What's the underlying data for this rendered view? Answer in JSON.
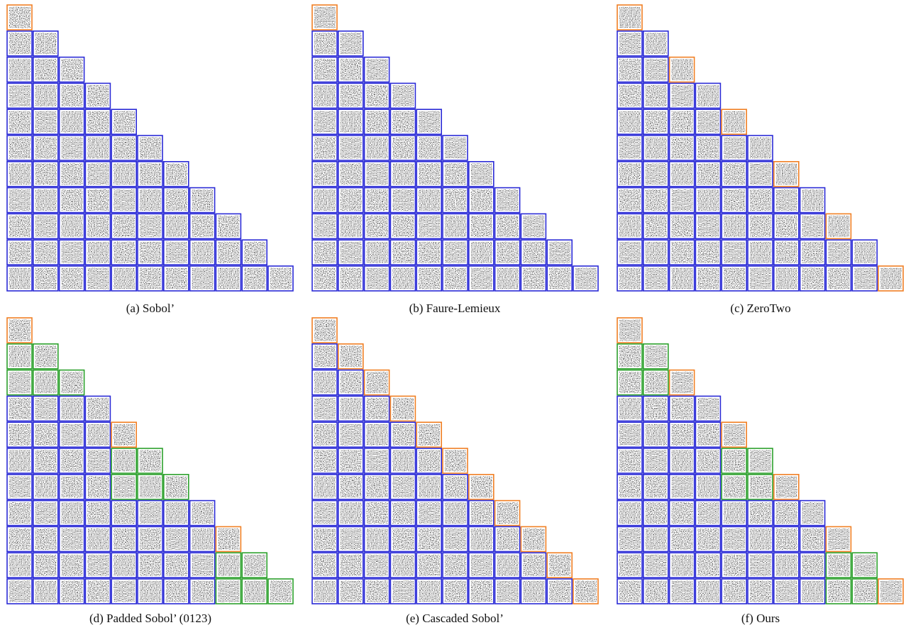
{
  "colors": {
    "blue": "#2b2bd6",
    "orange": "#f07f24",
    "green": "#2ca02c",
    "dots": "#333333"
  },
  "panels": [
    {
      "caption": "(a) Sobol’",
      "size": 11,
      "orange": [
        [
          0,
          0
        ]
      ],
      "green": []
    },
    {
      "caption": "(b) Faure-Lemieux",
      "size": 11,
      "orange": [
        [
          0,
          0
        ]
      ],
      "green": []
    },
    {
      "caption": "(c) ZeroTwo",
      "size": 11,
      "orange": [
        [
          0,
          0
        ],
        [
          2,
          2
        ],
        [
          4,
          4
        ],
        [
          6,
          6
        ],
        [
          8,
          8
        ],
        [
          10,
          10
        ]
      ],
      "green": []
    },
    {
      "caption": "(d) Padded Sobol’ (0123)",
      "size": 11,
      "orange": [
        [
          0,
          0
        ],
        [
          4,
          4
        ],
        [
          8,
          8
        ]
      ],
      "green": [
        [
          1,
          0
        ],
        [
          1,
          1
        ],
        [
          2,
          0
        ],
        [
          2,
          1
        ],
        [
          2,
          2
        ],
        [
          5,
          4
        ],
        [
          5,
          5
        ],
        [
          6,
          4
        ],
        [
          6,
          5
        ],
        [
          6,
          6
        ],
        [
          9,
          8
        ],
        [
          9,
          9
        ],
        [
          10,
          8
        ],
        [
          10,
          9
        ],
        [
          10,
          10
        ]
      ]
    },
    {
      "caption": "(e) Cascaded Sobol’",
      "size": 11,
      "orange": [
        [
          0,
          0
        ],
        [
          1,
          1
        ],
        [
          2,
          2
        ],
        [
          3,
          3
        ],
        [
          4,
          4
        ],
        [
          5,
          5
        ],
        [
          6,
          6
        ],
        [
          7,
          7
        ],
        [
          8,
          8
        ],
        [
          9,
          9
        ],
        [
          10,
          10
        ]
      ],
      "green": []
    },
    {
      "caption": "(f) Ours",
      "size": 11,
      "orange": [
        [
          0,
          0
        ],
        [
          2,
          2
        ],
        [
          4,
          4
        ],
        [
          6,
          6
        ],
        [
          8,
          8
        ],
        [
          10,
          10
        ]
      ],
      "green": [
        [
          1,
          0
        ],
        [
          1,
          1
        ],
        [
          2,
          0
        ],
        [
          2,
          1
        ],
        [
          5,
          4
        ],
        [
          5,
          5
        ],
        [
          6,
          4
        ],
        [
          6,
          5
        ],
        [
          9,
          8
        ],
        [
          9,
          9
        ],
        [
          10,
          8
        ],
        [
          10,
          9
        ]
      ]
    }
  ]
}
